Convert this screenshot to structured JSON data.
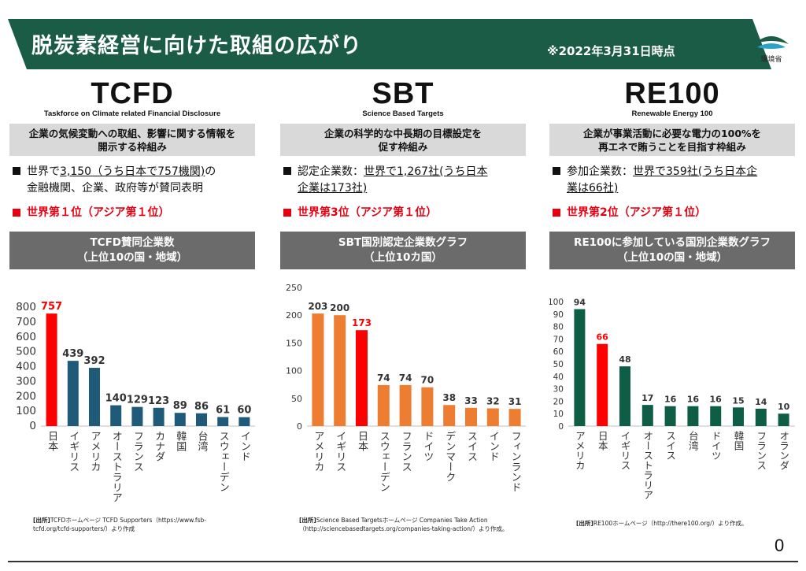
{
  "header": {
    "title": "脱炭素経営に向けた取組の広がり",
    "date": "※2022年3月31日時点",
    "logo_text": "環境省",
    "banner_color": "#1b5c47"
  },
  "columns": [
    {
      "name": "TCFD",
      "subtitle": "Taskforce on Climate related Financial Disclosure",
      "description_1": "企業の気候変動への取組、影響に関する情報を",
      "description_2": "開示する枠組み",
      "bullet_pre": "世界で",
      "bullet_ul1": "3,150（うち日本で757機関)",
      "bullet_post1": "の",
      "bullet_line2": "金融機関、企業、政府等が賛同表明",
      "bullet_ul2": "",
      "rank": "世界第１位（アジア第１位）",
      "chart_title_1": "TCFD賛同企業数",
      "chart_title_2": "（上位10の国・地域）",
      "source_label": "[出所]",
      "source_text_1": "TCFDホームページ TCFD Supporters（https://www.fsb-",
      "source_text_2": "tcfd.org/tcfd-supporters/）より作成"
    },
    {
      "name": "SBT",
      "subtitle": "Science Based Targets",
      "description_1": "企業の科学的な中長期の目標設定を",
      "description_2": "促す枠組み",
      "bullet_pre": "認定企業数：",
      "bullet_ul1": "世界で1,267社(うち日本",
      "bullet_post1": "",
      "bullet_line2": "",
      "bullet_ul2": "企業は173社)",
      "rank": "世界第3位（アジア第１位）",
      "chart_title_1": "SBT国別認定企業数グラフ",
      "chart_title_2": "（上位10カ国）",
      "source_label": "[出所]",
      "source_text_1": "Science Based Targetsホームページ Companies Take Action",
      "source_text_2": "（http://sciencebasedtargets.org/companies-taking-action/）より作成。"
    },
    {
      "name": "RE100",
      "subtitle": "Renewable Energy 100",
      "description_1": "企業が事業活動に必要な電力の100%を",
      "description_2": "再エネで賄うことを目指す枠組み",
      "bullet_pre": "参加企業数：",
      "bullet_ul1": "世界で359社(うち日本企",
      "bullet_post1": "",
      "bullet_line2": "",
      "bullet_ul2": "業は66社)",
      "rank": "世界第2位（アジア第１位）",
      "chart_title_1": "RE100に参加している国別企業数グラフ",
      "chart_title_2": "（上位10の国・地域）",
      "source_label": "[出所]",
      "source_text_1": "RE100ホームページ（http://there100.org/）より作成。",
      "source_text_2": ""
    }
  ],
  "page_number": "0",
  "chart_data": [
    {
      "type": "bar",
      "categories": [
        "日本",
        "イギリス",
        "アメリカ",
        "オーストラリア",
        "フランス",
        "カナダ",
        "韓国",
        "台湾",
        "スウェーデン",
        "インド"
      ],
      "values": [
        757,
        439,
        392,
        140,
        129,
        123,
        89,
        86,
        61,
        60
      ],
      "yticks": [
        0,
        100,
        200,
        300,
        400,
        500,
        600,
        700,
        800
      ],
      "ylim": [
        0,
        800
      ],
      "bar_color": "#1f5b78",
      "highlight_index": 0,
      "highlight_color": "#ff0000"
    },
    {
      "type": "bar",
      "categories": [
        "アメリカ",
        "イギリス",
        "日本",
        "スウェーデン",
        "フランス",
        "ドイツ",
        "デンマーク",
        "スイス",
        "インド",
        "フィンランド"
      ],
      "values": [
        203,
        200,
        173,
        74,
        74,
        70,
        38,
        33,
        32,
        31
      ],
      "yticks": [
        0,
        50,
        100,
        150,
        200,
        250
      ],
      "ylim": [
        0,
        250
      ],
      "bar_color": "#ed7d31",
      "highlight_index": 2,
      "highlight_color": "#ff0000"
    },
    {
      "type": "bar",
      "categories": [
        "アメリカ",
        "日本",
        "イギリス",
        "オーストラリア",
        "スイス",
        "台湾",
        "ドイツ",
        "韓国",
        "フランス",
        "オランダ"
      ],
      "values": [
        94,
        66,
        48,
        17,
        16,
        16,
        16,
        15,
        14,
        10
      ],
      "yticks": [
        0,
        10,
        20,
        30,
        40,
        50,
        60,
        70,
        80,
        90,
        100
      ],
      "ylim": [
        0,
        100
      ],
      "bar_color": "#0e5e45",
      "highlight_index": 1,
      "highlight_color": "#ff0000"
    }
  ]
}
